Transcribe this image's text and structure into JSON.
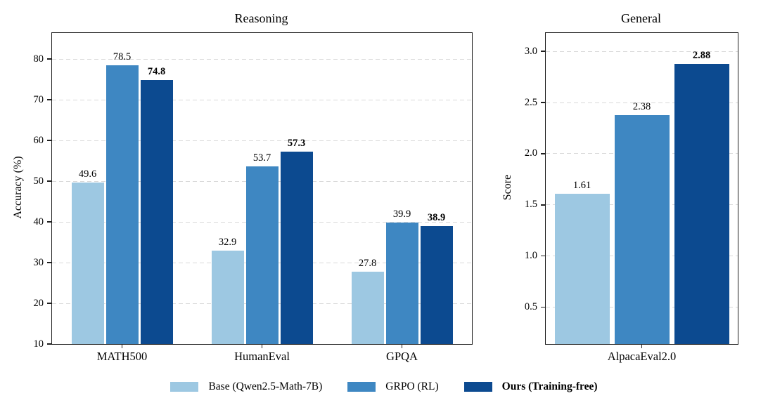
{
  "colors": {
    "series": [
      "#9dc8e2",
      "#3e87c2",
      "#0c4a90"
    ],
    "grid": "#d9d9d9",
    "spine": "#1f1f1f",
    "text": "#000000",
    "background": "#ffffff"
  },
  "chart_data": [
    {
      "type": "bar",
      "title": "Reasoning",
      "xlabel": "",
      "ylabel": "Accuracy (%)",
      "categories": [
        "MATH500",
        "HumanEval",
        "GPQA"
      ],
      "series": [
        {
          "name": "Base (Qwen2.5-Math-7B)",
          "values": [
            49.6,
            32.9,
            27.8
          ],
          "labels": [
            "49.6",
            "32.9",
            "27.8"
          ],
          "bold": false
        },
        {
          "name": "GRPO (RL)",
          "values": [
            78.5,
            53.7,
            39.9
          ],
          "labels": [
            "78.5",
            "53.7",
            "39.9"
          ],
          "bold": false
        },
        {
          "name": "Ours (Training-free)",
          "values": [
            74.8,
            57.3,
            38.9
          ],
          "labels": [
            "74.8",
            "57.3",
            "38.9"
          ],
          "bold": true
        }
      ],
      "ylim": [
        10,
        86.4
      ],
      "yticks": [
        {
          "value": 10,
          "label": "10"
        },
        {
          "value": 20,
          "label": "20"
        },
        {
          "value": 30,
          "label": "30"
        },
        {
          "value": 40,
          "label": "40"
        },
        {
          "value": 50,
          "label": "50"
        },
        {
          "value": 60,
          "label": "60"
        },
        {
          "value": 70,
          "label": "70"
        },
        {
          "value": 80,
          "label": "80"
        }
      ],
      "grid": "horizontal dashed",
      "legend_position": "below figure, shared"
    },
    {
      "type": "bar",
      "title": "General",
      "xlabel": "",
      "ylabel": "Score",
      "categories": [
        "AlpacaEval2.0"
      ],
      "series": [
        {
          "name": "Base (Qwen2.5-Math-7B)",
          "values": [
            1.61
          ],
          "labels": [
            "1.61"
          ],
          "bold": false
        },
        {
          "name": "GRPO (RL)",
          "values": [
            2.38
          ],
          "labels": [
            "2.38"
          ],
          "bold": false
        },
        {
          "name": "Ours (Training-free)",
          "values": [
            2.88
          ],
          "labels": [
            "2.88"
          ],
          "bold": true
        }
      ],
      "ylim": [
        0.14,
        3.18
      ],
      "yticks": [
        {
          "value": 0.5,
          "label": "0.5"
        },
        {
          "value": 1.0,
          "label": "1.0"
        },
        {
          "value": 1.5,
          "label": "1.5"
        },
        {
          "value": 2.0,
          "label": "2.0"
        },
        {
          "value": 2.5,
          "label": "2.5"
        },
        {
          "value": 3.0,
          "label": "3.0"
        }
      ],
      "grid": "horizontal dashed",
      "legend_position": "below figure, shared"
    }
  ],
  "legend": {
    "items": [
      {
        "label": "Base (Qwen2.5-Math-7B)",
        "color": "#9dc8e2",
        "bold": false
      },
      {
        "label": "GRPO (RL)",
        "color": "#3e87c2",
        "bold": false
      },
      {
        "label": "Ours (Training-free)",
        "color": "#0c4a90",
        "bold": true
      }
    ]
  }
}
